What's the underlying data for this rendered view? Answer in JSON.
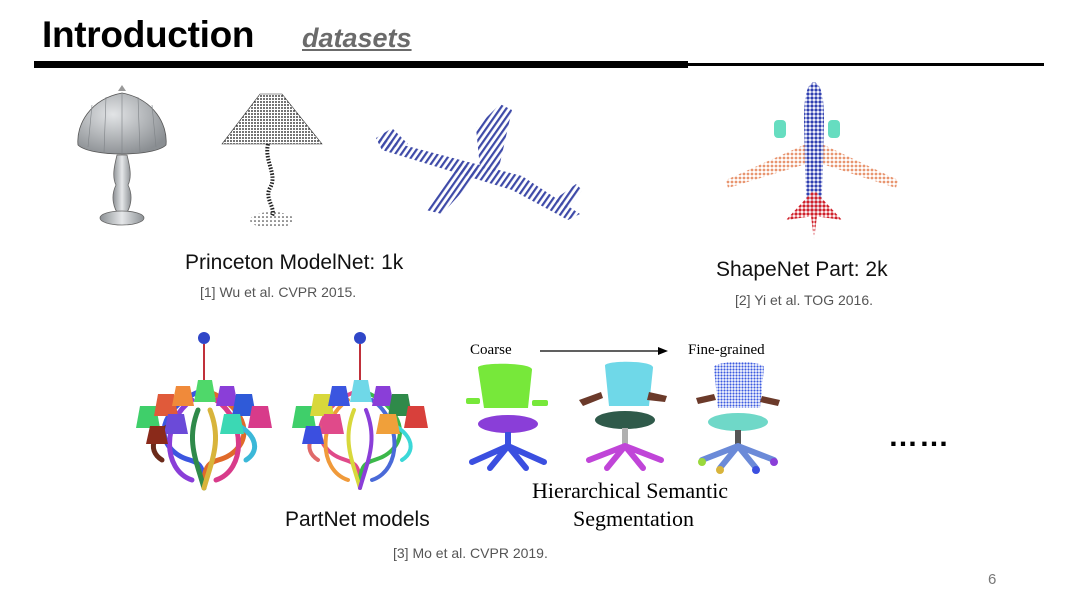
{
  "slide": {
    "title": "Introduction",
    "subtitle": "datasets",
    "page_number": "6"
  },
  "modelnet": {
    "label": "Princeton ModelNet: 1k",
    "citation": "[1] Wu et al. CVPR 2015."
  },
  "shapenet": {
    "label": "ShapeNet Part: 2k",
    "citation": "[2] Yi et al. TOG 2016."
  },
  "partnet": {
    "label": "PartNet models",
    "citation": "[3] Mo et al. CVPR 2019.",
    "coarse_label": "Coarse",
    "fine_label": "Fine-grained",
    "hier_line1": "Hierarchical Semantic",
    "hier_line2": "Segmentation",
    "ellipsis": "……"
  },
  "colors": {
    "lamp_gray": "#a9adb1",
    "airplane_blue": "#2f3fb0",
    "wing_orange": "#e8956f",
    "tail_red": "#d0202a",
    "engine_teal": "#66ddc0",
    "chair_green": "#77e83a",
    "chair_purple": "#8a3ed8",
    "chair_blue": "#3b4fe0",
    "chair_cyan": "#6fd8e8",
    "chair_darkgreen": "#2f5a4a",
    "chair_magenta": "#c045d8"
  }
}
